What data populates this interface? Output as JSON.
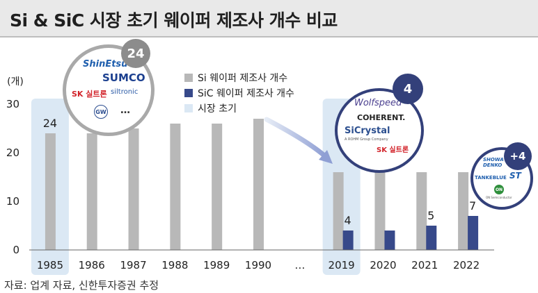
{
  "header": {
    "title": "Si & SiC 시장 초기 웨이퍼 제조사 개수 비교"
  },
  "footer": {
    "source": "자료: 업계 자료, 신한투자증권 추정"
  },
  "colors": {
    "si": "#b8b8b8",
    "sic": "#37498a",
    "early_market": "#dbe8f4",
    "badge_grey": "#8c8c8c",
    "badge_navy": "#33407a"
  },
  "chart_data": {
    "type": "bar",
    "unit_label": "(개)",
    "ylim": [
      0,
      30
    ],
    "y_ticks": [
      0,
      10,
      20,
      30
    ],
    "gridlines": false,
    "legend_position": "top-center",
    "categories": [
      "1985",
      "1986",
      "1987",
      "1988",
      "1989",
      "1990",
      "…",
      "2019",
      "2020",
      "2021",
      "2022"
    ],
    "series": [
      {
        "name": "Si 웨이퍼 제조사 개수",
        "values": [
          24,
          24,
          25,
          26,
          26,
          27,
          null,
          16,
          16,
          16,
          16
        ]
      },
      {
        "name": "SiC 웨이퍼 제조사 개수",
        "values": [
          null,
          null,
          null,
          null,
          null,
          null,
          null,
          4,
          4,
          5,
          7
        ]
      }
    ],
    "highlight_label": "시장 초기",
    "highlight_categories": [
      "1985",
      "2019"
    ],
    "data_labels": [
      {
        "category": "1985",
        "series": 0,
        "text": "24"
      },
      {
        "category": "2019",
        "series": 1,
        "text": "4"
      },
      {
        "category": "2021",
        "series": 1,
        "text": "5"
      },
      {
        "category": "2022",
        "series": 1,
        "text": "7"
      }
    ]
  },
  "callouts": {
    "si_1985": {
      "count": "24",
      "logos": [
        "ShinEtsu",
        "SUMCO",
        "SK 실트론",
        "siltronic",
        "GW"
      ],
      "more": "…"
    },
    "sic_2019": {
      "count": "4",
      "logos": [
        "Wolfspeed",
        "COHERENT.",
        "SiCrystal",
        "A ROHM Group Company",
        "SK 실트론"
      ]
    },
    "sic_added": {
      "count": "+4",
      "logos": [
        "SHOWA DENKO",
        "TANKEBLUE",
        "ST",
        "ON",
        "ON Semiconductor"
      ]
    }
  }
}
